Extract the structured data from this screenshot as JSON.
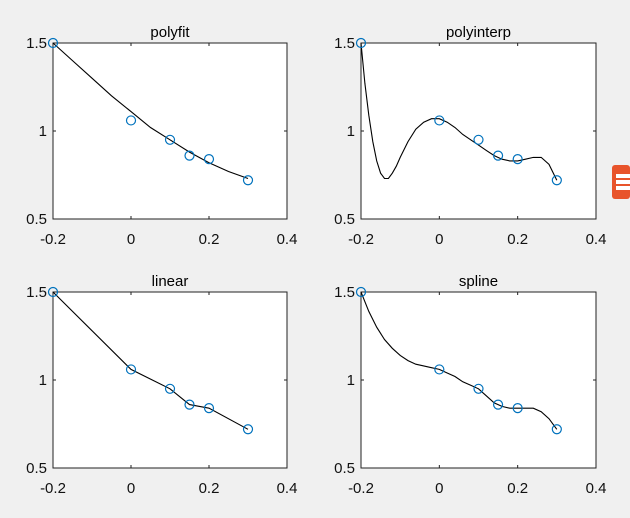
{
  "colors": {
    "background": "#f0f0f0",
    "axes_bg": "#ffffff",
    "curve": "#000000",
    "marker": "#0072bd",
    "watermark": "#e8542b"
  },
  "watermark": {
    "icon": "logo-icon"
  },
  "chart_data": [
    {
      "type": "line",
      "title": "polyfit",
      "xlabel": "",
      "ylabel": "",
      "xlim": [
        -0.2,
        0.4
      ],
      "ylim": [
        0.5,
        1.5
      ],
      "xticks": [
        "-0.2",
        "0",
        "0.2",
        "0.4"
      ],
      "yticks": [
        "0.5",
        "1",
        "1.5"
      ],
      "grid": false,
      "points": {
        "x": [
          -0.2,
          0,
          0.1,
          0.15,
          0.2,
          0.3
        ],
        "y": [
          1.5,
          1.06,
          0.95,
          0.86,
          0.84,
          0.72
        ]
      },
      "curve": {
        "x": [
          -0.2,
          -0.15,
          -0.1,
          -0.05,
          0,
          0.05,
          0.1,
          0.15,
          0.2,
          0.25,
          0.3
        ],
        "y": [
          1.5,
          1.4,
          1.3,
          1.2,
          1.11,
          1.02,
          0.95,
          0.88,
          0.82,
          0.77,
          0.73
        ]
      }
    },
    {
      "type": "line",
      "title": "polyinterp",
      "xlabel": "",
      "ylabel": "",
      "xlim": [
        -0.2,
        0.4
      ],
      "ylim": [
        0.5,
        1.5
      ],
      "xticks": [
        "-0.2",
        "0",
        "0.2",
        "0.4"
      ],
      "yticks": [
        "0.5",
        "1",
        "1.5"
      ],
      "grid": false,
      "points": {
        "x": [
          -0.2,
          0,
          0.1,
          0.15,
          0.2,
          0.3
        ],
        "y": [
          1.5,
          1.06,
          0.95,
          0.86,
          0.84,
          0.72
        ]
      },
      "curve": {
        "x": [
          -0.2,
          -0.19,
          -0.18,
          -0.17,
          -0.16,
          -0.15,
          -0.14,
          -0.13,
          -0.12,
          -0.11,
          -0.1,
          -0.08,
          -0.06,
          -0.04,
          -0.02,
          0,
          0.02,
          0.04,
          0.06,
          0.08,
          0.1,
          0.12,
          0.14,
          0.16,
          0.18,
          0.2,
          0.22,
          0.24,
          0.26,
          0.28,
          0.3
        ],
        "y": [
          1.5,
          1.27,
          1.09,
          0.94,
          0.83,
          0.76,
          0.73,
          0.73,
          0.76,
          0.8,
          0.85,
          0.94,
          1.01,
          1.05,
          1.07,
          1.07,
          1.05,
          1.02,
          0.98,
          0.95,
          0.92,
          0.89,
          0.86,
          0.84,
          0.83,
          0.83,
          0.84,
          0.85,
          0.85,
          0.81,
          0.72
        ]
      }
    },
    {
      "type": "line",
      "title": "linear",
      "xlabel": "",
      "ylabel": "",
      "xlim": [
        -0.2,
        0.4
      ],
      "ylim": [
        0.5,
        1.5
      ],
      "xticks": [
        "-0.2",
        "0",
        "0.2",
        "0.4"
      ],
      "yticks": [
        "0.5",
        "1",
        "1.5"
      ],
      "grid": false,
      "points": {
        "x": [
          -0.2,
          0,
          0.1,
          0.15,
          0.2,
          0.3
        ],
        "y": [
          1.5,
          1.06,
          0.95,
          0.86,
          0.84,
          0.72
        ]
      },
      "curve": {
        "x": [
          -0.2,
          0,
          0.1,
          0.15,
          0.2,
          0.3
        ],
        "y": [
          1.5,
          1.06,
          0.95,
          0.86,
          0.84,
          0.72
        ]
      }
    },
    {
      "type": "line",
      "title": "spline",
      "xlabel": "",
      "ylabel": "",
      "xlim": [
        -0.2,
        0.4
      ],
      "ylim": [
        0.5,
        1.5
      ],
      "xticks": [
        "-0.2",
        "0",
        "0.2",
        "0.4"
      ],
      "yticks": [
        "0.5",
        "1",
        "1.5"
      ],
      "grid": false,
      "points": {
        "x": [
          -0.2,
          0,
          0.1,
          0.15,
          0.2,
          0.3
        ],
        "y": [
          1.5,
          1.06,
          0.95,
          0.86,
          0.84,
          0.72
        ]
      },
      "curve": {
        "x": [
          -0.2,
          -0.18,
          -0.16,
          -0.14,
          -0.12,
          -0.1,
          -0.08,
          -0.06,
          -0.04,
          -0.02,
          0,
          0.02,
          0.04,
          0.06,
          0.08,
          0.1,
          0.12,
          0.14,
          0.16,
          0.18,
          0.2,
          0.22,
          0.24,
          0.26,
          0.28,
          0.3
        ],
        "y": [
          1.5,
          1.39,
          1.3,
          1.23,
          1.18,
          1.14,
          1.11,
          1.09,
          1.08,
          1.07,
          1.06,
          1.04,
          1.02,
          0.99,
          0.97,
          0.95,
          0.91,
          0.87,
          0.85,
          0.84,
          0.84,
          0.84,
          0.84,
          0.82,
          0.78,
          0.72
        ]
      }
    }
  ]
}
